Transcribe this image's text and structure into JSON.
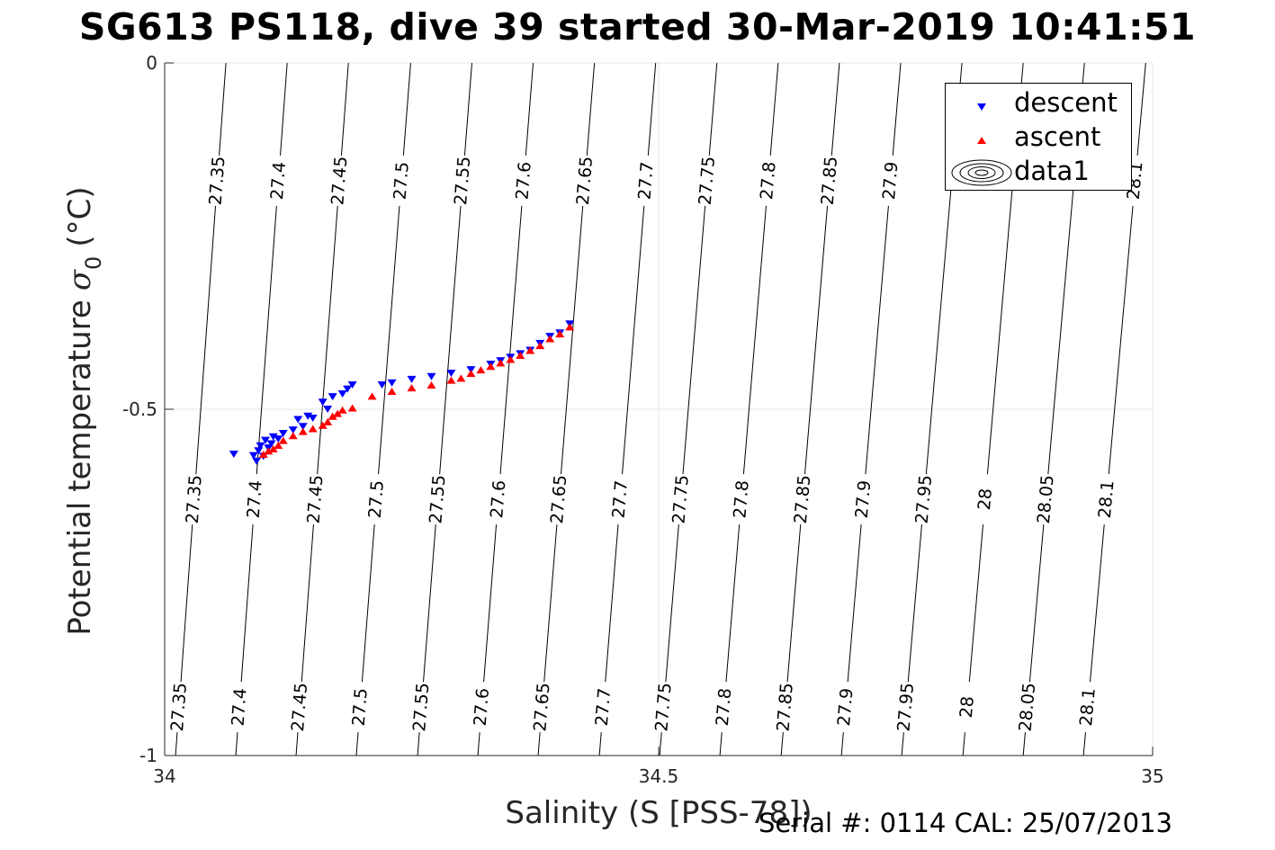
{
  "chart_data": {
    "type": "scatter",
    "title": "SG613 PS118, dive 39 started 30-Mar-2019 10:41:51",
    "xlabel": "Salinity (S [PSS-78])",
    "ylabel": "Potential temperature",
    "ylabel_symbol": "σ",
    "ylabel_subscript": "0",
    "ylabel_unit": "(°C)",
    "xlim": [
      34,
      35
    ],
    "ylim": [
      -1,
      0
    ],
    "xticks": [
      "34",
      "34.5",
      "35"
    ],
    "yticks": [
      "-1",
      "-0.5",
      "0"
    ],
    "grid": true,
    "legend_position": "top-right",
    "legend": [
      {
        "label": "descent",
        "marker": "triangle-down",
        "color": "#0000ff"
      },
      {
        "label": "ascent",
        "marker": "triangle-up",
        "color": "#ff0000"
      },
      {
        "label": "data1",
        "marker": "contour",
        "color": "#000000"
      }
    ],
    "isopycnals": {
      "levels": [
        "27.35",
        "27.4",
        "27.45",
        "27.5",
        "27.55",
        "27.6",
        "27.65",
        "27.7",
        "27.75",
        "27.8",
        "27.85",
        "27.9",
        "27.95",
        "28",
        "28.05",
        "28.1"
      ],
      "s_at_temp_0": [
        34.062,
        34.124,
        34.186,
        34.249,
        34.311,
        34.373,
        34.435,
        34.497,
        34.559,
        34.621,
        34.683,
        34.745,
        34.807,
        34.869,
        34.931,
        34.993
      ],
      "s_at_temp_minus1": [
        34.011,
        34.072,
        34.133,
        34.194,
        34.256,
        34.317,
        34.378,
        34.44,
        34.501,
        34.562,
        34.624,
        34.685,
        34.746,
        34.808,
        34.869,
        34.93
      ],
      "labels_top": [
        "27.35",
        "27.4",
        "27.45",
        "27.5",
        "27.55",
        "27.6",
        "27.65",
        "27.7",
        "27.75",
        "27.8",
        "27.85",
        "27.9",
        "",
        "",
        "",
        "28.1"
      ],
      "labels_middle": [
        "27.35",
        "27.4",
        "27.45",
        "27.5",
        "27.55",
        "27.6",
        "27.65",
        "27.7",
        "27.75",
        "27.8",
        "27.85",
        "27.9",
        "27.95",
        "28",
        "28.05",
        "28.1"
      ],
      "labels_bottom": [
        "27.35",
        "27.4",
        "27.45",
        "27.5",
        "27.55",
        "27.6",
        "27.65",
        "27.7",
        "27.75",
        "27.8",
        "27.85",
        "27.9",
        "27.95",
        "28",
        "28.05",
        "28.1"
      ]
    },
    "series": [
      {
        "name": "descent",
        "color": "#0000ff",
        "marker": "triangle-down",
        "x": [
          34.07,
          34.09,
          34.093,
          34.095,
          34.097,
          34.1,
          34.102,
          34.105,
          34.108,
          34.11,
          34.115,
          34.12,
          34.13,
          34.135,
          34.14,
          34.145,
          34.15,
          34.16,
          34.165,
          34.17,
          34.18,
          34.185,
          34.19,
          34.22,
          34.23,
          34.25,
          34.27,
          34.29,
          34.31,
          34.33,
          34.34,
          34.35,
          34.36,
          34.37,
          34.38,
          34.39,
          34.4,
          34.41
        ],
        "y": [
          -0.565,
          -0.567,
          -0.575,
          -0.56,
          -0.553,
          -0.568,
          -0.545,
          -0.556,
          -0.55,
          -0.54,
          -0.543,
          -0.535,
          -0.53,
          -0.515,
          -0.525,
          -0.51,
          -0.513,
          -0.49,
          -0.5,
          -0.482,
          -0.478,
          -0.471,
          -0.465,
          -0.465,
          -0.462,
          -0.457,
          -0.453,
          -0.448,
          -0.443,
          -0.435,
          -0.43,
          -0.425,
          -0.42,
          -0.415,
          -0.405,
          -0.395,
          -0.39,
          -0.377
        ]
      },
      {
        "name": "ascent",
        "color": "#ff0000",
        "marker": "triangle-up",
        "x": [
          34.1,
          34.105,
          34.11,
          34.115,
          34.12,
          34.13,
          34.14,
          34.15,
          34.16,
          34.165,
          34.17,
          34.175,
          34.18,
          34.19,
          34.21,
          34.23,
          34.25,
          34.27,
          34.29,
          34.3,
          34.31,
          34.32,
          34.33,
          34.34,
          34.35,
          34.36,
          34.37,
          34.38,
          34.39,
          34.4,
          34.41
        ],
        "y": [
          -0.565,
          -0.56,
          -0.557,
          -0.552,
          -0.545,
          -0.538,
          -0.532,
          -0.528,
          -0.523,
          -0.518,
          -0.51,
          -0.506,
          -0.501,
          -0.498,
          -0.481,
          -0.474,
          -0.469,
          -0.465,
          -0.458,
          -0.455,
          -0.448,
          -0.443,
          -0.438,
          -0.433,
          -0.428,
          -0.422,
          -0.415,
          -0.408,
          -0.398,
          -0.391,
          -0.381
        ]
      }
    ]
  },
  "footer": "Serial #: 0114  CAL: 25/07/2013"
}
